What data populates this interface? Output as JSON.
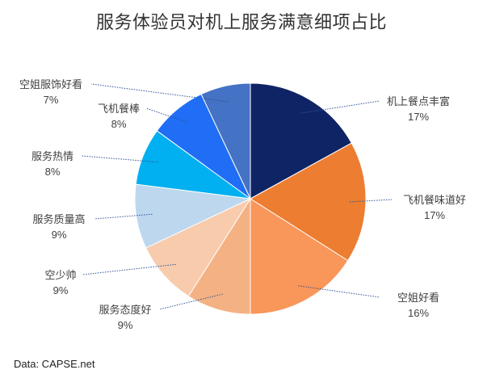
{
  "chart_data": {
    "type": "pie",
    "title": "服务体验员对机上服务满意细项占比",
    "slices": [
      {
        "label": "机上餐点丰富",
        "value": 17,
        "value_label": "17%",
        "color": "#0f2464"
      },
      {
        "label": "飞机餐味道好",
        "value": 17,
        "value_label": "17%",
        "color": "#ed7d31"
      },
      {
        "label": "空姐好看",
        "value": 16,
        "value_label": "16%",
        "color": "#f9965a"
      },
      {
        "label": "服务态度好",
        "value": 9,
        "value_label": "9%",
        "color": "#f4b183"
      },
      {
        "label": "空少帅",
        "value": 9,
        "value_label": "9%",
        "color": "#f8cbad"
      },
      {
        "label": "服务质量高",
        "value": 9,
        "value_label": "9%",
        "color": "#bdd7ee"
      },
      {
        "label": "服务热情",
        "value": 8,
        "value_label": "8%",
        "color": "#00b0f0"
      },
      {
        "label": "飞机餐棒",
        "value": 8,
        "value_label": "8%",
        "color": "#1f6ef5"
      },
      {
        "label": "空姐服饰好看",
        "value": 7,
        "value_label": "7%",
        "color": "#4472c4"
      }
    ],
    "source": "Data: CAPSE.net"
  }
}
